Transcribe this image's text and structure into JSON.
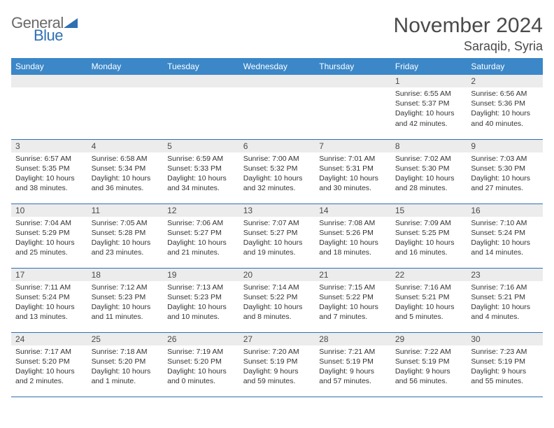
{
  "logo": {
    "line1": "General",
    "line2": "Blue"
  },
  "title": "November 2024",
  "location": "Saraqib, Syria",
  "colors": {
    "header_bg": "#3b87c8",
    "header_text": "#ffffff",
    "daynum_bg": "#ececec",
    "border": "#2f6fb3",
    "body_text": "#333333",
    "logo_gray": "#6a6a6a",
    "logo_blue": "#2f6fb3"
  },
  "columns": [
    "Sunday",
    "Monday",
    "Tuesday",
    "Wednesday",
    "Thursday",
    "Friday",
    "Saturday"
  ],
  "weeks": [
    [
      {
        "n": "",
        "empty": true
      },
      {
        "n": "",
        "empty": true
      },
      {
        "n": "",
        "empty": true
      },
      {
        "n": "",
        "empty": true
      },
      {
        "n": "",
        "empty": true
      },
      {
        "n": "1",
        "sunrise": "6:55 AM",
        "sunset": "5:37 PM",
        "daylight": "10 hours and 42 minutes."
      },
      {
        "n": "2",
        "sunrise": "6:56 AM",
        "sunset": "5:36 PM",
        "daylight": "10 hours and 40 minutes."
      }
    ],
    [
      {
        "n": "3",
        "sunrise": "6:57 AM",
        "sunset": "5:35 PM",
        "daylight": "10 hours and 38 minutes."
      },
      {
        "n": "4",
        "sunrise": "6:58 AM",
        "sunset": "5:34 PM",
        "daylight": "10 hours and 36 minutes."
      },
      {
        "n": "5",
        "sunrise": "6:59 AM",
        "sunset": "5:33 PM",
        "daylight": "10 hours and 34 minutes."
      },
      {
        "n": "6",
        "sunrise": "7:00 AM",
        "sunset": "5:32 PM",
        "daylight": "10 hours and 32 minutes."
      },
      {
        "n": "7",
        "sunrise": "7:01 AM",
        "sunset": "5:31 PM",
        "daylight": "10 hours and 30 minutes."
      },
      {
        "n": "8",
        "sunrise": "7:02 AM",
        "sunset": "5:30 PM",
        "daylight": "10 hours and 28 minutes."
      },
      {
        "n": "9",
        "sunrise": "7:03 AM",
        "sunset": "5:30 PM",
        "daylight": "10 hours and 27 minutes."
      }
    ],
    [
      {
        "n": "10",
        "sunrise": "7:04 AM",
        "sunset": "5:29 PM",
        "daylight": "10 hours and 25 minutes."
      },
      {
        "n": "11",
        "sunrise": "7:05 AM",
        "sunset": "5:28 PM",
        "daylight": "10 hours and 23 minutes."
      },
      {
        "n": "12",
        "sunrise": "7:06 AM",
        "sunset": "5:27 PM",
        "daylight": "10 hours and 21 minutes."
      },
      {
        "n": "13",
        "sunrise": "7:07 AM",
        "sunset": "5:27 PM",
        "daylight": "10 hours and 19 minutes."
      },
      {
        "n": "14",
        "sunrise": "7:08 AM",
        "sunset": "5:26 PM",
        "daylight": "10 hours and 18 minutes."
      },
      {
        "n": "15",
        "sunrise": "7:09 AM",
        "sunset": "5:25 PM",
        "daylight": "10 hours and 16 minutes."
      },
      {
        "n": "16",
        "sunrise": "7:10 AM",
        "sunset": "5:24 PM",
        "daylight": "10 hours and 14 minutes."
      }
    ],
    [
      {
        "n": "17",
        "sunrise": "7:11 AM",
        "sunset": "5:24 PM",
        "daylight": "10 hours and 13 minutes."
      },
      {
        "n": "18",
        "sunrise": "7:12 AM",
        "sunset": "5:23 PM",
        "daylight": "10 hours and 11 minutes."
      },
      {
        "n": "19",
        "sunrise": "7:13 AM",
        "sunset": "5:23 PM",
        "daylight": "10 hours and 10 minutes."
      },
      {
        "n": "20",
        "sunrise": "7:14 AM",
        "sunset": "5:22 PM",
        "daylight": "10 hours and 8 minutes."
      },
      {
        "n": "21",
        "sunrise": "7:15 AM",
        "sunset": "5:22 PM",
        "daylight": "10 hours and 7 minutes."
      },
      {
        "n": "22",
        "sunrise": "7:16 AM",
        "sunset": "5:21 PM",
        "daylight": "10 hours and 5 minutes."
      },
      {
        "n": "23",
        "sunrise": "7:16 AM",
        "sunset": "5:21 PM",
        "daylight": "10 hours and 4 minutes."
      }
    ],
    [
      {
        "n": "24",
        "sunrise": "7:17 AM",
        "sunset": "5:20 PM",
        "daylight": "10 hours and 2 minutes."
      },
      {
        "n": "25",
        "sunrise": "7:18 AM",
        "sunset": "5:20 PM",
        "daylight": "10 hours and 1 minute."
      },
      {
        "n": "26",
        "sunrise": "7:19 AM",
        "sunset": "5:20 PM",
        "daylight": "10 hours and 0 minutes."
      },
      {
        "n": "27",
        "sunrise": "7:20 AM",
        "sunset": "5:19 PM",
        "daylight": "9 hours and 59 minutes."
      },
      {
        "n": "28",
        "sunrise": "7:21 AM",
        "sunset": "5:19 PM",
        "daylight": "9 hours and 57 minutes."
      },
      {
        "n": "29",
        "sunrise": "7:22 AM",
        "sunset": "5:19 PM",
        "daylight": "9 hours and 56 minutes."
      },
      {
        "n": "30",
        "sunrise": "7:23 AM",
        "sunset": "5:19 PM",
        "daylight": "9 hours and 55 minutes."
      }
    ]
  ],
  "labels": {
    "sunrise": "Sunrise:",
    "sunset": "Sunset:",
    "daylight": "Daylight:"
  }
}
